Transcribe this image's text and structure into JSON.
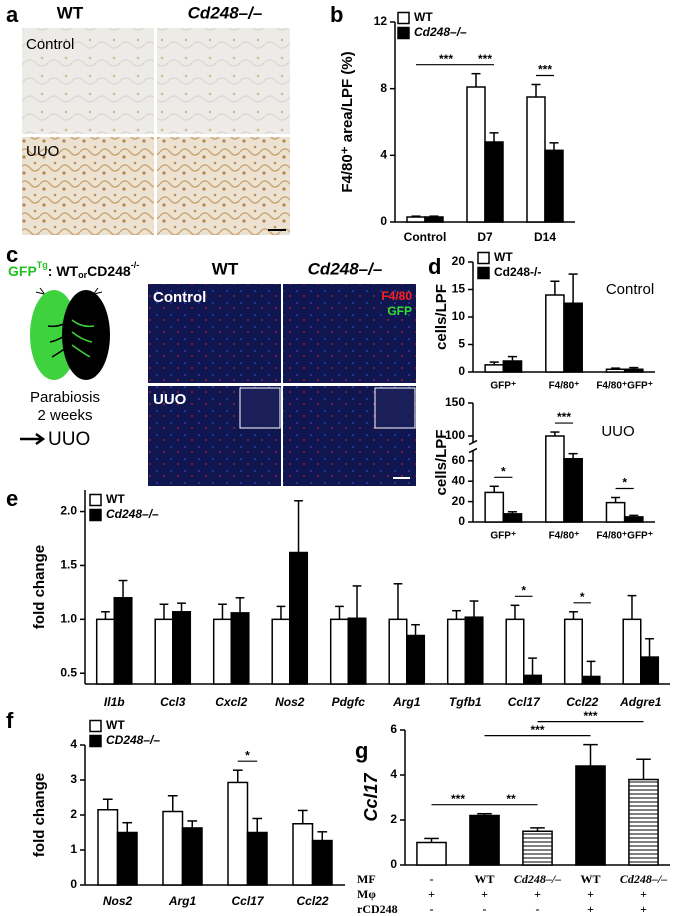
{
  "panel_labels": [
    "a",
    "b",
    "c",
    "d",
    "e",
    "f",
    "g"
  ],
  "panel_a": {
    "columns": [
      "WT",
      "Cd248–/–"
    ],
    "rows": [
      "Control",
      "UUO"
    ]
  },
  "panel_c": {
    "pair_parts": [
      "GFP",
      "Tg",
      ": WT",
      "or",
      "CD248",
      "-/-"
    ],
    "procedure": [
      "Parabiosis",
      "2 weeks",
      "UUO"
    ],
    "columns": [
      "WT",
      "Cd248–/–"
    ],
    "rows": [
      "Control",
      "UUO"
    ],
    "stains": [
      "F4/80",
      "GFP"
    ]
  },
  "chart_data": [
    {
      "type": "bar",
      "y_label": "F4/80⁺ area/LPF (%)",
      "categories": [
        "Control",
        "D7",
        "D14"
      ],
      "series": [
        {
          "name": "WT",
          "color": "#ffffff",
          "values": [
            0.3,
            8.1,
            7.5
          ],
          "errors": [
            0.05,
            0.8,
            0.75
          ]
        },
        {
          "name": "Cd248–/–",
          "color": "#000000",
          "values": [
            0.3,
            4.8,
            4.3
          ],
          "errors": [
            0.05,
            0.55,
            0.45
          ]
        }
      ],
      "ylim": [
        0,
        12
      ],
      "yticks": [
        0,
        4,
        8,
        12
      ],
      "annotations": [
        {
          "text": "***",
          "bars": [
            [
              0,
              0
            ],
            [
              1,
              0
            ]
          ]
        },
        {
          "text": "***",
          "bars": [
            [
              1,
              0
            ],
            [
              1,
              1
            ]
          ]
        },
        {
          "text": "***",
          "bars": [
            [
              2,
              0
            ],
            [
              2,
              1
            ]
          ]
        }
      ]
    },
    {
      "type": "bar",
      "title": "Control",
      "y_label": "cells/LPF",
      "categories": [
        "GFP⁺",
        "F4/80⁺",
        "F4/80⁺GFP⁺"
      ],
      "series": [
        {
          "name": "WT",
          "color": "#ffffff",
          "values": [
            1.3,
            14,
            0.5
          ],
          "errors": [
            0.5,
            2.5,
            0.2
          ]
        },
        {
          "name": "Cd248-/-",
          "color": "#000000",
          "values": [
            2,
            12.5,
            0.5
          ],
          "errors": [
            0.8,
            5.3,
            0.3
          ]
        }
      ],
      "ylim": [
        0,
        20
      ],
      "yticks": [
        0,
        5,
        10,
        15,
        20
      ]
    },
    {
      "type": "bar",
      "title": "UUO",
      "y_label": "cells/LPF",
      "categories": [
        "GFP⁺",
        "F4/80⁺",
        "F4/80⁺GFP⁺"
      ],
      "series": [
        {
          "color": "#ffffff",
          "values": [
            29,
            100,
            19
          ],
          "errors": [
            6,
            6,
            5
          ]
        },
        {
          "color": "#000000",
          "values": [
            8,
            62,
            5
          ],
          "errors": [
            2,
            5,
            1.5
          ]
        }
      ],
      "ylim": [
        0,
        150
      ],
      "yticks": [
        0,
        20,
        40,
        60,
        100,
        150
      ],
      "axis_break": [
        70,
        90
      ],
      "annotations": [
        {
          "text": "*",
          "bars": [
            [
              0,
              0
            ],
            [
              0,
              1
            ]
          ]
        },
        {
          "text": "***",
          "bars": [
            [
              1,
              0
            ],
            [
              1,
              1
            ]
          ]
        },
        {
          "text": "*",
          "bars": [
            [
              2,
              0
            ],
            [
              2,
              1
            ]
          ]
        }
      ]
    },
    {
      "type": "bar",
      "y_label": "fold change",
      "categories": [
        "Il1b",
        "Ccl3",
        "Cxcl2",
        "Nos2",
        "Pdgfc",
        "Arg1",
        "Tgfb1",
        "Ccl17",
        "Ccl22",
        "Adgre1"
      ],
      "series": [
        {
          "name": "WT",
          "color": "#ffffff",
          "values": [
            1.0,
            1.0,
            1.0,
            1.0,
            1.0,
            1.0,
            1.0,
            1.0,
            1.0,
            1.0
          ],
          "errors": [
            0.07,
            0.14,
            0.14,
            0.12,
            0.12,
            0.33,
            0.08,
            0.13,
            0.07,
            0.22
          ]
        },
        {
          "name": "Cd248–/–",
          "color": "#000000",
          "values": [
            1.2,
            1.07,
            1.06,
            1.62,
            1.01,
            0.85,
            1.02,
            0.48,
            0.47,
            0.65
          ],
          "errors": [
            0.16,
            0.08,
            0.14,
            0.48,
            0.3,
            0.1,
            0.15,
            0.16,
            0.14,
            0.17
          ]
        }
      ],
      "ylim": [
        0.4,
        2.2
      ],
      "yticks": [
        0.5,
        {
          "value": 1,
          "label": "1.0"
        },
        1.5,
        {
          "value": 2,
          "label": "2.0"
        }
      ],
      "annotations": [
        {
          "text": "*",
          "bars": [
            [
              7,
              0
            ],
            [
              7,
              1
            ]
          ]
        },
        {
          "text": "*",
          "bars": [
            [
              8,
              0
            ],
            [
              8,
              1
            ]
          ]
        }
      ]
    },
    {
      "type": "bar",
      "y_label": "fold change",
      "categories": [
        "Nos2",
        "Arg1",
        "Ccl17",
        "Ccl22"
      ],
      "series": [
        {
          "name": "WT",
          "color": "#ffffff",
          "values": [
            2.15,
            2.1,
            2.93,
            1.75
          ],
          "errors": [
            0.3,
            0.45,
            0.35,
            0.38
          ]
        },
        {
          "name": "CD248–/–",
          "color": "#000000",
          "values": [
            1.5,
            1.63,
            1.5,
            1.27
          ],
          "errors": [
            0.28,
            0.2,
            0.4,
            0.25
          ]
        }
      ],
      "ylim": [
        0,
        4
      ],
      "yticks": [
        0,
        1,
        2,
        3,
        4
      ],
      "annotations": [
        {
          "text": "*",
          "bars": [
            [
              2,
              0
            ],
            [
              2,
              1
            ]
          ]
        }
      ]
    },
    {
      "type": "bar",
      "y_label": "Ccl17",
      "values": [
        1.0,
        2.2,
        1.5,
        4.4,
        3.8
      ],
      "errors": [
        0.18,
        0.08,
        0.15,
        0.95,
        0.9
      ],
      "colors": [
        "#ffffff",
        "#000000",
        "hatch",
        "#000000",
        "hatch"
      ],
      "ylim": [
        0,
        6
      ],
      "yticks": [
        0,
        2,
        4,
        6
      ],
      "annotations": [
        {
          "text": "***",
          "bars": [
            [
              0,
              0
            ],
            [
              1,
              0
            ]
          ]
        },
        {
          "text": "**",
          "bars": [
            [
              1,
              0
            ],
            [
              2,
              0
            ]
          ]
        },
        {
          "text": "***",
          "bars": [
            [
              1,
              0
            ],
            [
              3,
              0
            ]
          ]
        },
        {
          "text": "***",
          "bars": [
            [
              2,
              0
            ],
            [
              4,
              0
            ]
          ]
        }
      ],
      "table": {
        "rows": [
          [
            "MF",
            "-",
            "WT",
            "Cd248–/–",
            "WT",
            "Cd248–/–"
          ],
          [
            "Mφ",
            "+",
            "+",
            "+",
            "+",
            "+"
          ],
          [
            "rCD248",
            "-",
            "-",
            "-",
            "+",
            "+"
          ]
        ]
      }
    }
  ]
}
